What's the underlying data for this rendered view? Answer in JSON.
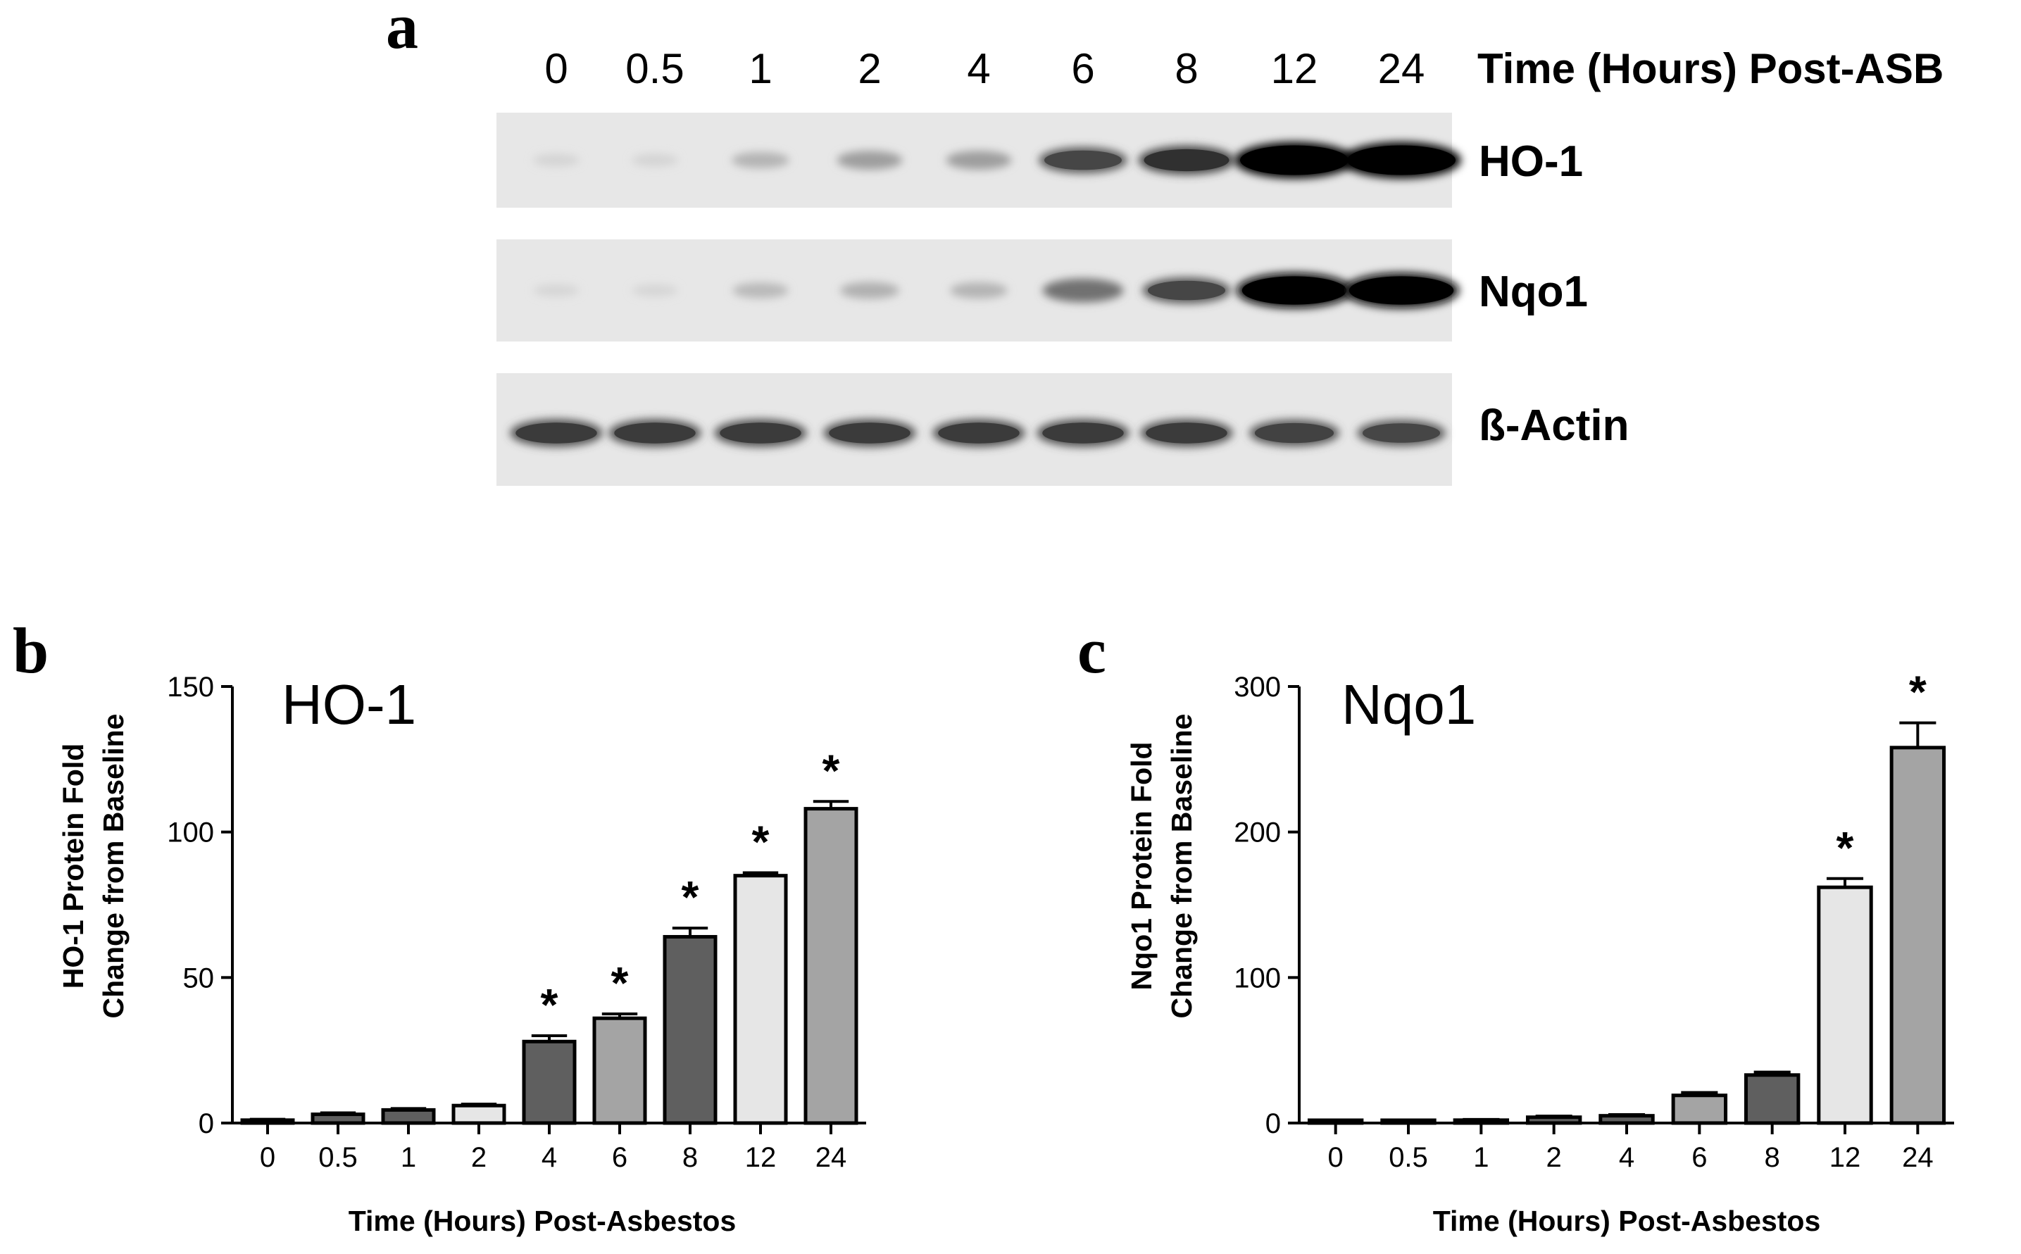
{
  "panels": {
    "a": "a",
    "b": "b",
    "c": "c"
  },
  "blot": {
    "lanes": [
      "0",
      "0.5",
      "1",
      "2",
      "4",
      "6",
      "8",
      "12",
      "24"
    ],
    "time_header": "Time (Hours) Post-ASB",
    "rows": [
      {
        "label": "HO-1",
        "intensity": [
          0.06,
          0.06,
          0.2,
          0.3,
          0.3,
          0.6,
          0.7,
          1.0,
          1.0
        ]
      },
      {
        "label": "Nqo1",
        "intensity": [
          0.05,
          0.05,
          0.18,
          0.22,
          0.2,
          0.5,
          0.6,
          0.95,
          0.95
        ]
      },
      {
        "label": "ß-Actin",
        "intensity": [
          0.65,
          0.65,
          0.65,
          0.65,
          0.65,
          0.65,
          0.65,
          0.62,
          0.6
        ]
      }
    ]
  },
  "chart_data": [
    {
      "type": "bar",
      "title": "HO-1",
      "xlabel": "Time (Hours) Post-Asbestos",
      "ylabel_lines": [
        "HO-1 Protein Fold",
        "Change from Baseline"
      ],
      "categories": [
        "0",
        "0.5",
        "1",
        "2",
        "4",
        "6",
        "8",
        "12",
        "24"
      ],
      "values": [
        1,
        3,
        4.5,
        6,
        28,
        36,
        64,
        85,
        108
      ],
      "errors": [
        0.3,
        0.5,
        0.5,
        0.5,
        2,
        1.5,
        3,
        1,
        2.5
      ],
      "significant": [
        false,
        false,
        false,
        false,
        true,
        true,
        true,
        true,
        true
      ],
      "sig_marker": "*",
      "ylim": [
        0,
        150
      ],
      "yticks": [
        "0",
        "50",
        "100",
        "150"
      ],
      "bar_colors": [
        "#5f5f5f",
        "#5f5f5f",
        "#5f5f5f",
        "#e6e6e6",
        "#5f5f5f",
        "#a4a4a4",
        "#5f5f5f",
        "#e6e6e6",
        "#a4a4a4"
      ]
    },
    {
      "type": "bar",
      "title": "Nqo1",
      "xlabel": "Time (Hours) Post-Asbestos",
      "ylabel_lines": [
        "Nqo1 Protein Fold",
        "Change from Baseline"
      ],
      "categories": [
        "0",
        "0.5",
        "1",
        "2",
        "4",
        "6",
        "8",
        "12",
        "24"
      ],
      "values": [
        1,
        1,
        2,
        4,
        5,
        19,
        33,
        162,
        258
      ],
      "errors": [
        0.3,
        0.3,
        0.5,
        0.8,
        0.8,
        2,
        2,
        6,
        17
      ],
      "significant": [
        false,
        false,
        false,
        false,
        false,
        false,
        false,
        true,
        true
      ],
      "sig_marker": "*",
      "ylim": [
        0,
        300
      ],
      "yticks": [
        "0",
        "100",
        "200",
        "300"
      ],
      "bar_colors": [
        "#5f5f5f",
        "#5f5f5f",
        "#5f5f5f",
        "#5f5f5f",
        "#5f5f5f",
        "#a4a4a4",
        "#5f5f5f",
        "#e6e6e6",
        "#a4a4a4"
      ]
    }
  ]
}
